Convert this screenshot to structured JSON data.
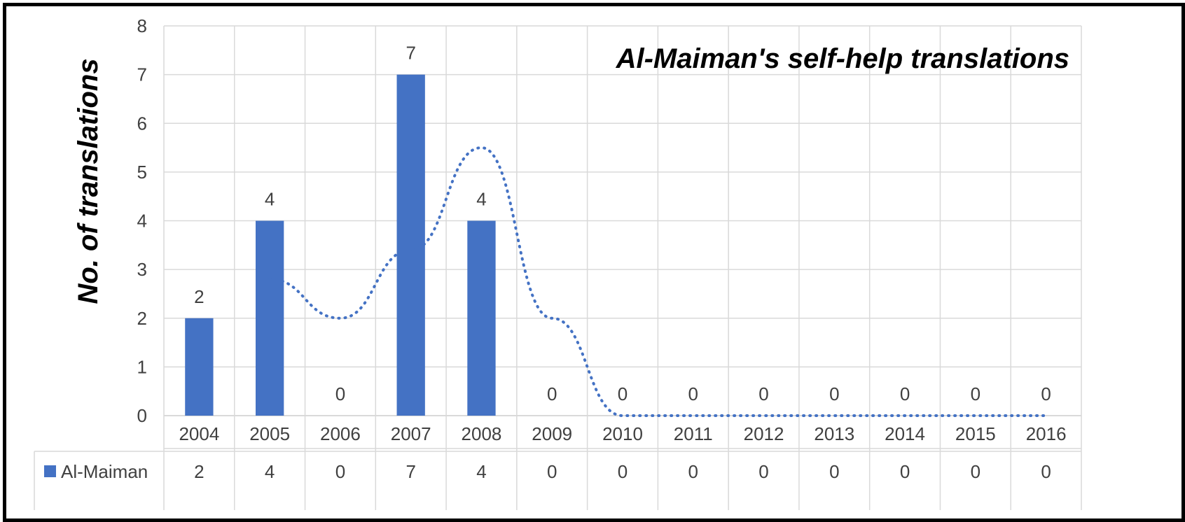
{
  "chart_data": {
    "type": "bar",
    "title": "Al-Maiman's self-help translations",
    "ylabel": "No. of translations",
    "xlabel": "",
    "categories": [
      "2004",
      "2005",
      "2006",
      "2007",
      "2008",
      "2009",
      "2010",
      "2011",
      "2012",
      "2013",
      "2014",
      "2015",
      "2016"
    ],
    "series": [
      {
        "name": "Al-Maiman",
        "values": [
          2,
          4,
          0,
          7,
          4,
          0,
          0,
          0,
          0,
          0,
          0,
          0,
          0
        ],
        "color": "#4472C4"
      }
    ],
    "trendline": {
      "style": "dotted",
      "color": "#4472C4",
      "values": [
        null,
        2.8,
        2,
        3.4,
        5.5,
        2,
        0,
        0,
        0,
        0,
        0,
        0,
        0
      ]
    },
    "ylim": [
      0,
      8
    ],
    "yticks": [
      0,
      1,
      2,
      3,
      4,
      5,
      6,
      7,
      8
    ],
    "grid": true,
    "data_table": true,
    "data_labels": true
  }
}
